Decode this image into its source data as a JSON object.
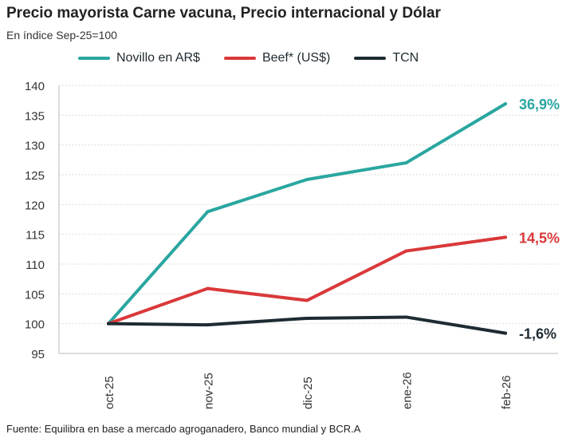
{
  "chart_data": {
    "type": "line",
    "title": "Precio mayorista Carne vacuna, Precio internacional  y Dólar",
    "subtitle": "En índice Sep-25=100",
    "categories": [
      "oct-25",
      "nov-25",
      "dic-25",
      "ene-26",
      "feb-26"
    ],
    "yticks": [
      95,
      100,
      105,
      110,
      115,
      120,
      125,
      130,
      135,
      140
    ],
    "ylim": [
      95,
      140
    ],
    "grid": true,
    "legend_position": "top",
    "series": [
      {
        "name": "Novillo en  AR$",
        "color": "#2aa6a0",
        "values": [
          100,
          118.8,
          124.2,
          127.0,
          136.9
        ],
        "end_label": "36,9%"
      },
      {
        "name": "Beef* (US$)",
        "color": "#d9383a",
        "values": [
          100,
          105.9,
          103.9,
          112.2,
          114.5
        ],
        "end_label": "14,5%"
      },
      {
        "name": "TCN",
        "color": "#1e2b33",
        "values": [
          100,
          99.8,
          100.9,
          101.1,
          98.4
        ],
        "end_label": "-1,6%"
      }
    ],
    "source": "Fuente: Equilibra en base a mercado agroganadero, Banco mundial  y BCR.A"
  }
}
